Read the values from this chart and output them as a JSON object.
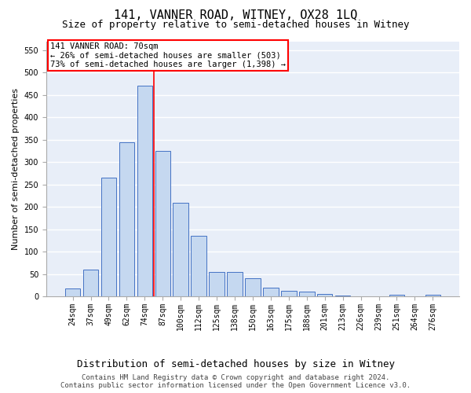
{
  "title": "141, VANNER ROAD, WITNEY, OX28 1LQ",
  "subtitle": "Size of property relative to semi-detached houses in Witney",
  "xlabel": "Distribution of semi-detached houses by size in Witney",
  "ylabel": "Number of semi-detached properties",
  "categories": [
    "24sqm",
    "37sqm",
    "49sqm",
    "62sqm",
    "74sqm",
    "87sqm",
    "100sqm",
    "112sqm",
    "125sqm",
    "138sqm",
    "150sqm",
    "163sqm",
    "175sqm",
    "188sqm",
    "201sqm",
    "213sqm",
    "226sqm",
    "239sqm",
    "251sqm",
    "264sqm",
    "276sqm"
  ],
  "values": [
    18,
    60,
    265,
    345,
    470,
    325,
    210,
    135,
    55,
    55,
    40,
    20,
    12,
    10,
    5,
    2,
    0,
    0,
    3,
    0,
    3
  ],
  "bar_color": "#c5d8f0",
  "bar_edge_color": "#4472c4",
  "annotation_line0": "141 VANNER ROAD: 70sqm",
  "annotation_line1": "← 26% of semi-detached houses are smaller (503)",
  "annotation_line2": "73% of semi-detached houses are larger (1,398) →",
  "annotation_box_color": "white",
  "annotation_box_edge": "red",
  "vline_color": "red",
  "vline_x": 4.5,
  "ylim": [
    0,
    570
  ],
  "yticks": [
    0,
    50,
    100,
    150,
    200,
    250,
    300,
    350,
    400,
    450,
    500,
    550
  ],
  "footer_line1": "Contains HM Land Registry data © Crown copyright and database right 2024.",
  "footer_line2": "Contains public sector information licensed under the Open Government Licence v3.0.",
  "background_color": "#e8eef8",
  "grid_color": "#ffffff",
  "title_fontsize": 11,
  "subtitle_fontsize": 9,
  "ylabel_fontsize": 8,
  "xlabel_fontsize": 9,
  "tick_fontsize": 7,
  "annotation_fontsize": 7.5,
  "footer_fontsize": 6.5
}
